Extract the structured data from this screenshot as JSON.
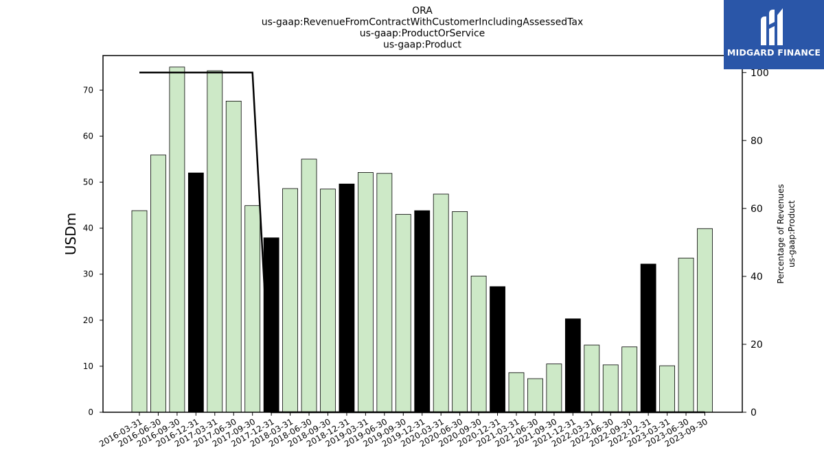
{
  "logo": {
    "text": "MIDGARD FINANCE",
    "background": "#2a56a8"
  },
  "chart_data": {
    "type": "bar",
    "title_lines": [
      "ORA",
      "us-gaap:RevenueFromContractWithCustomerIncludingAssessedTax",
      "us-gaap:ProductOrService",
      "us-gaap:Product"
    ],
    "ylabel": "USDm",
    "y2label": [
      "Percentage of Revenues",
      "us-gaap:Product"
    ],
    "categories": [
      "2016-03-31",
      "2016-06-30",
      "2016-09-30",
      "2016-12-31",
      "2017-03-31",
      "2017-06-30",
      "2017-09-30",
      "2017-12-31",
      "2018-03-31",
      "2018-06-30",
      "2018-09-30",
      "2018-12-31",
      "2019-03-31",
      "2019-06-30",
      "2019-09-30",
      "2019-12-31",
      "2020-03-31",
      "2020-06-30",
      "2020-09-30",
      "2020-12-31",
      "2021-03-31",
      "2021-06-30",
      "2021-09-30",
      "2021-12-31",
      "2022-03-31",
      "2022-06-30",
      "2022-09-30",
      "2022-12-31",
      "2023-03-31",
      "2023-06-30",
      "2023-09-30"
    ],
    "series": [
      {
        "type": "bar",
        "values": [
          43.8,
          55.9,
          75.0,
          52.0,
          74.2,
          67.6,
          44.9,
          37.9,
          48.6,
          55.0,
          48.5,
          49.6,
          52.1,
          51.9,
          43.0,
          43.8,
          47.4,
          43.6,
          29.6,
          27.3,
          8.6,
          7.3,
          10.5,
          20.3,
          14.6,
          10.3,
          14.2,
          32.2,
          10.1,
          33.5,
          39.9
        ],
        "highlight": [
          false,
          false,
          false,
          true,
          false,
          false,
          false,
          true,
          false,
          false,
          false,
          true,
          false,
          false,
          false,
          true,
          false,
          false,
          false,
          true,
          false,
          false,
          false,
          true,
          false,
          false,
          false,
          true,
          false,
          false,
          false
        ]
      },
      {
        "type": "line",
        "axis": "right",
        "values": [
          100,
          100,
          100,
          100,
          100,
          100,
          100,
          0,
          0,
          0,
          0,
          0,
          0,
          0,
          0,
          0,
          0,
          0,
          0,
          0,
          0,
          0,
          0,
          0,
          0,
          0,
          0,
          0,
          0,
          0,
          0
        ]
      }
    ],
    "ylim": [
      0,
      77.5
    ],
    "y_ticks": [
      0,
      10,
      20,
      30,
      40,
      50,
      60,
      70
    ],
    "y2lim": [
      0,
      105
    ],
    "y2_ticks": [
      0,
      20,
      40,
      60,
      80,
      100
    ],
    "grid": false,
    "colors": {
      "bar": "#cde9c7",
      "bar_highlight": "#000000",
      "bar_edge": "#000000",
      "line": "#000000"
    }
  }
}
